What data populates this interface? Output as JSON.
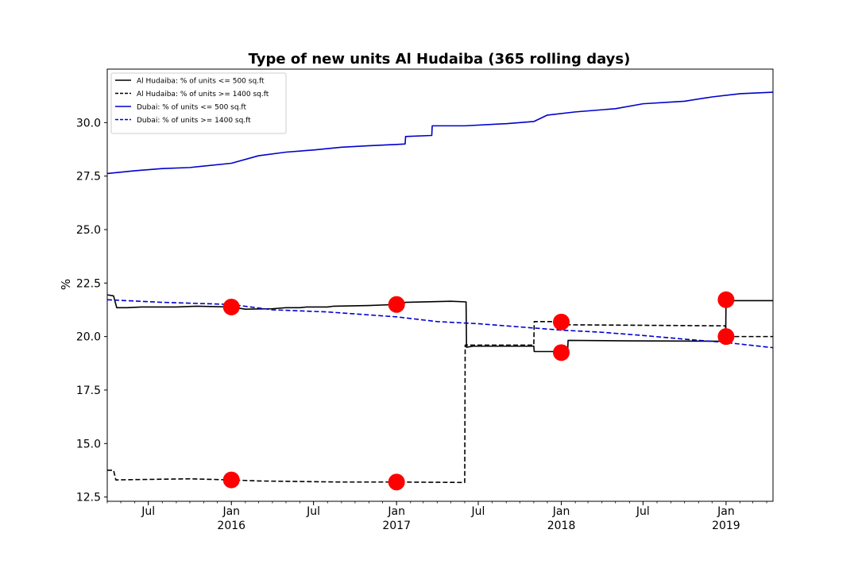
{
  "chart_data": {
    "type": "line",
    "title": "Type of new units Al Hudaiba (365 rolling days)",
    "xlabel": "",
    "ylabel": "%",
    "xlim": [
      "2015-04-01",
      "2019-04-15"
    ],
    "ylim": [
      12.3,
      32.5
    ],
    "yticks": [
      12.5,
      15.0,
      17.5,
      20.0,
      22.5,
      25.0,
      27.5,
      30.0
    ],
    "ytick_labels": [
      "12.5",
      "15.0",
      "17.5",
      "20.0",
      "22.5",
      "25.0",
      "27.5",
      "30.0"
    ],
    "xticks": [
      {
        "date": "2015-07-01",
        "label": "Jul",
        "sub": ""
      },
      {
        "date": "2016-01-01",
        "label": "Jan",
        "sub": "2016"
      },
      {
        "date": "2016-07-01",
        "label": "Jul",
        "sub": ""
      },
      {
        "date": "2017-01-01",
        "label": "Jan",
        "sub": "2017"
      },
      {
        "date": "2017-07-01",
        "label": "Jul",
        "sub": ""
      },
      {
        "date": "2018-01-01",
        "label": "Jan",
        "sub": "2018"
      },
      {
        "date": "2018-07-01",
        "label": "Jul",
        "sub": ""
      },
      {
        "date": "2019-01-01",
        "label": "Jan",
        "sub": "2019"
      }
    ],
    "grid": false,
    "legend_position": "top-left",
    "series": [
      {
        "name": "Al Hudaiba: % of units <= 500 sq.ft",
        "color": "#000000",
        "dash": "solid",
        "points": [
          [
            "2015-04-01",
            21.95
          ],
          [
            "2015-04-15",
            21.9
          ],
          [
            "2015-04-22",
            21.35
          ],
          [
            "2015-05-15",
            21.35
          ],
          [
            "2015-06-15",
            21.38
          ],
          [
            "2015-09-01",
            21.38
          ],
          [
            "2015-10-15",
            21.42
          ],
          [
            "2016-01-01",
            21.38
          ],
          [
            "2016-02-01",
            21.28
          ],
          [
            "2016-04-01",
            21.3
          ],
          [
            "2016-05-01",
            21.35
          ],
          [
            "2016-06-01",
            21.35
          ],
          [
            "2016-06-15",
            21.38
          ],
          [
            "2016-08-01",
            21.38
          ],
          [
            "2016-08-15",
            21.42
          ],
          [
            "2016-11-01",
            21.45
          ],
          [
            "2017-01-01",
            21.5
          ],
          [
            "2017-01-15",
            21.5
          ],
          [
            "2017-01-20",
            21.6
          ],
          [
            "2017-05-01",
            21.65
          ],
          [
            "2017-06-04",
            21.62
          ],
          [
            "2017-06-05",
            19.5
          ],
          [
            "2017-06-20",
            19.55
          ],
          [
            "2017-11-01",
            19.55
          ],
          [
            "2017-11-02",
            19.3
          ],
          [
            "2018-01-15",
            19.3
          ],
          [
            "2018-01-16",
            19.82
          ],
          [
            "2018-06-01",
            19.8
          ],
          [
            "2018-12-31",
            19.78
          ],
          [
            "2019-01-01",
            21.68
          ],
          [
            "2019-04-15",
            21.68
          ]
        ]
      },
      {
        "name": "Al Hudaiba: % of units >= 1400 sq.ft",
        "color": "#000000",
        "dash": "dashed",
        "points": [
          [
            "2015-04-01",
            13.75
          ],
          [
            "2015-04-15",
            13.75
          ],
          [
            "2015-04-20",
            13.3
          ],
          [
            "2015-10-01",
            13.35
          ],
          [
            "2016-01-01",
            13.3
          ],
          [
            "2016-03-01",
            13.25
          ],
          [
            "2016-09-01",
            13.2
          ],
          [
            "2017-01-01",
            13.2
          ],
          [
            "2017-06-01",
            13.18
          ],
          [
            "2017-06-02",
            19.6
          ],
          [
            "2017-11-01",
            19.6
          ],
          [
            "2017-11-02",
            20.7
          ],
          [
            "2018-01-15",
            20.7
          ],
          [
            "2018-01-16",
            20.55
          ],
          [
            "2018-12-31",
            20.5
          ],
          [
            "2019-01-01",
            20.0
          ],
          [
            "2019-04-15",
            20.0
          ]
        ]
      },
      {
        "name": "Dubai: % of units <= 500 sq.ft",
        "color": "#0000cc",
        "dash": "solid",
        "points": [
          [
            "2015-04-01",
            27.62
          ],
          [
            "2015-06-01",
            27.75
          ],
          [
            "2015-08-01",
            27.85
          ],
          [
            "2015-10-01",
            27.9
          ],
          [
            "2016-01-01",
            28.1
          ],
          [
            "2016-03-01",
            28.45
          ],
          [
            "2016-05-01",
            28.62
          ],
          [
            "2016-07-01",
            28.72
          ],
          [
            "2016-09-01",
            28.85
          ],
          [
            "2016-11-01",
            28.92
          ],
          [
            "2017-01-01",
            28.98
          ],
          [
            "2017-01-20",
            29.0
          ],
          [
            "2017-01-21",
            29.35
          ],
          [
            "2017-03-20",
            29.4
          ],
          [
            "2017-03-21",
            29.85
          ],
          [
            "2017-06-01",
            29.85
          ],
          [
            "2017-09-01",
            29.95
          ],
          [
            "2017-11-01",
            30.05
          ],
          [
            "2017-12-01",
            30.35
          ],
          [
            "2018-02-01",
            30.5
          ],
          [
            "2018-05-01",
            30.65
          ],
          [
            "2018-07-01",
            30.88
          ],
          [
            "2018-10-01",
            31.0
          ],
          [
            "2018-12-01",
            31.2
          ],
          [
            "2019-02-01",
            31.35
          ],
          [
            "2019-04-15",
            31.42
          ]
        ]
      },
      {
        "name": "Dubai: % of units >= 1400 sq.ft",
        "color": "#0000cc",
        "dash": "dashed",
        "points": [
          [
            "2015-04-01",
            21.72
          ],
          [
            "2015-08-01",
            21.6
          ],
          [
            "2016-01-01",
            21.5
          ],
          [
            "2016-04-01",
            21.25
          ],
          [
            "2016-08-01",
            21.15
          ],
          [
            "2017-01-01",
            20.92
          ],
          [
            "2017-04-01",
            20.7
          ],
          [
            "2017-07-01",
            20.6
          ],
          [
            "2017-10-01",
            20.45
          ],
          [
            "2018-01-01",
            20.3
          ],
          [
            "2018-04-01",
            20.2
          ],
          [
            "2018-07-01",
            20.05
          ],
          [
            "2018-10-01",
            19.88
          ],
          [
            "2019-01-01",
            19.72
          ],
          [
            "2019-04-15",
            19.48
          ]
        ]
      }
    ],
    "markers": {
      "color": "#ff0000",
      "points": [
        [
          "2016-01-01",
          21.38
        ],
        [
          "2016-01-01",
          13.3
        ],
        [
          "2017-01-01",
          21.5
        ],
        [
          "2017-01-01",
          13.2
        ],
        [
          "2018-01-01",
          20.68
        ],
        [
          "2018-01-01",
          19.25
        ],
        [
          "2019-01-01",
          21.72
        ],
        [
          "2019-01-01",
          20.0
        ]
      ]
    }
  }
}
